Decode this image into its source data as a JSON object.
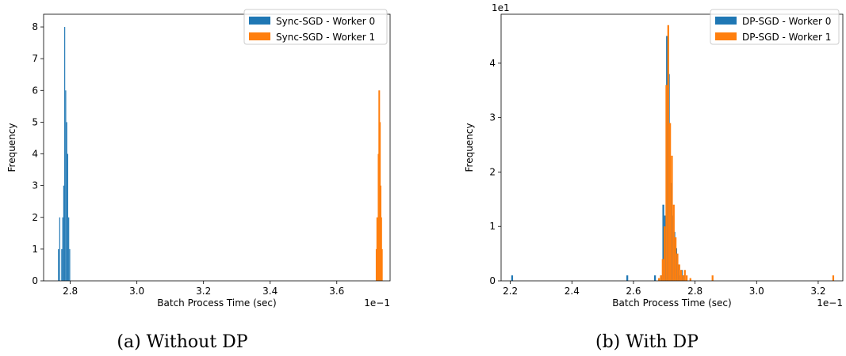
{
  "chart_data": [
    {
      "type": "bar",
      "caption": "(a) Without DP",
      "xlabel": "Batch Process Time (sec)",
      "ylabel": "Frequency",
      "x_offset_label": "1e−1",
      "y_offset_label": "",
      "xlim": [
        2.72,
        3.76
      ],
      "ylim": [
        0,
        8.4
      ],
      "xticks": [
        2.8,
        3.0,
        3.2,
        3.4,
        3.6
      ],
      "xtick_labels": [
        "2.8",
        "3.0",
        "3.2",
        "3.4",
        "3.6"
      ],
      "yticks": [
        0,
        1,
        2,
        3,
        4,
        5,
        6,
        7,
        8
      ],
      "ytick_labels": [
        "0",
        "1",
        "2",
        "3",
        "4",
        "5",
        "6",
        "7",
        "8"
      ],
      "legend_position": "top-right",
      "series": [
        {
          "name": "Sync-SGD - Worker 0",
          "color": "#1f77b4",
          "bins": [
            {
              "x": 2.763,
              "y": 1
            },
            {
              "x": 2.767,
              "y": 2
            },
            {
              "x": 2.773,
              "y": 1
            },
            {
              "x": 2.776,
              "y": 2
            },
            {
              "x": 2.779,
              "y": 3
            },
            {
              "x": 2.782,
              "y": 8
            },
            {
              "x": 2.785,
              "y": 6
            },
            {
              "x": 2.788,
              "y": 5
            },
            {
              "x": 2.791,
              "y": 4
            },
            {
              "x": 2.794,
              "y": 2
            },
            {
              "x": 2.797,
              "y": 1
            }
          ]
        },
        {
          "name": "Sync-SGD - Worker 1",
          "color": "#ff7f0e",
          "bins": [
            {
              "x": 3.717,
              "y": 1
            },
            {
              "x": 3.719,
              "y": 2
            },
            {
              "x": 3.721,
              "y": 2
            },
            {
              "x": 3.723,
              "y": 4
            },
            {
              "x": 3.725,
              "y": 6
            },
            {
              "x": 3.727,
              "y": 6
            },
            {
              "x": 3.729,
              "y": 5
            },
            {
              "x": 3.731,
              "y": 3
            },
            {
              "x": 3.733,
              "y": 2
            },
            {
              "x": 3.735,
              "y": 1
            }
          ]
        }
      ]
    },
    {
      "type": "bar",
      "caption": "(b) With DP",
      "xlabel": "Batch Process Time (sec)",
      "ylabel": "Frequency",
      "x_offset_label": "1e−1",
      "y_offset_label": "1e1",
      "xlim": [
        2.17,
        3.28
      ],
      "ylim": [
        0,
        4.9
      ],
      "xticks": [
        2.2,
        2.4,
        2.6,
        2.8,
        3.0,
        3.2
      ],
      "xtick_labels": [
        "2.2",
        "2.4",
        "2.6",
        "2.8",
        "3.0",
        "3.2"
      ],
      "yticks": [
        0,
        1,
        2,
        3,
        4
      ],
      "ytick_labels": [
        "0",
        "1",
        "2",
        "3",
        "4"
      ],
      "legend_position": "top-right",
      "series": [
        {
          "name": "DP-SGD - Worker 0",
          "color": "#1f77b4",
          "bins": [
            {
              "x": 2.203,
              "y": 0.1
            },
            {
              "x": 2.577,
              "y": 0.1
            },
            {
              "x": 2.667,
              "y": 0.1
            },
            {
              "x": 2.688,
              "y": 0.1
            },
            {
              "x": 2.694,
              "y": 1.4
            },
            {
              "x": 2.7,
              "y": 1.2
            },
            {
              "x": 2.706,
              "y": 4.5
            },
            {
              "x": 2.712,
              "y": 3.8
            },
            {
              "x": 2.718,
              "y": 1.8
            },
            {
              "x": 2.724,
              "y": 1.2
            },
            {
              "x": 2.73,
              "y": 0.9
            },
            {
              "x": 2.736,
              "y": 0.6
            },
            {
              "x": 2.742,
              "y": 0.3
            },
            {
              "x": 2.748,
              "y": 0.1
            },
            {
              "x": 2.754,
              "y": 0.2
            },
            {
              "x": 2.76,
              "y": 0.1
            }
          ]
        },
        {
          "name": "DP-SGD - Worker 1",
          "color": "#ff7f0e",
          "bins": [
            {
              "x": 2.68,
              "y": 0.05
            },
            {
              "x": 2.686,
              "y": 0.1
            },
            {
              "x": 2.692,
              "y": 0.4
            },
            {
              "x": 2.698,
              "y": 1.0
            },
            {
              "x": 2.704,
              "y": 3.6
            },
            {
              "x": 2.71,
              "y": 4.7
            },
            {
              "x": 2.716,
              "y": 2.9
            },
            {
              "x": 2.722,
              "y": 2.3
            },
            {
              "x": 2.728,
              "y": 1.4
            },
            {
              "x": 2.734,
              "y": 0.8
            },
            {
              "x": 2.74,
              "y": 0.5
            },
            {
              "x": 2.746,
              "y": 0.3
            },
            {
              "x": 2.752,
              "y": 0.2
            },
            {
              "x": 2.758,
              "y": 0.1
            },
            {
              "x": 2.764,
              "y": 0.2
            },
            {
              "x": 2.77,
              "y": 0.1
            },
            {
              "x": 2.782,
              "y": 0.05
            },
            {
              "x": 2.854,
              "y": 0.1
            },
            {
              "x": 3.246,
              "y": 0.1
            }
          ]
        }
      ]
    }
  ]
}
